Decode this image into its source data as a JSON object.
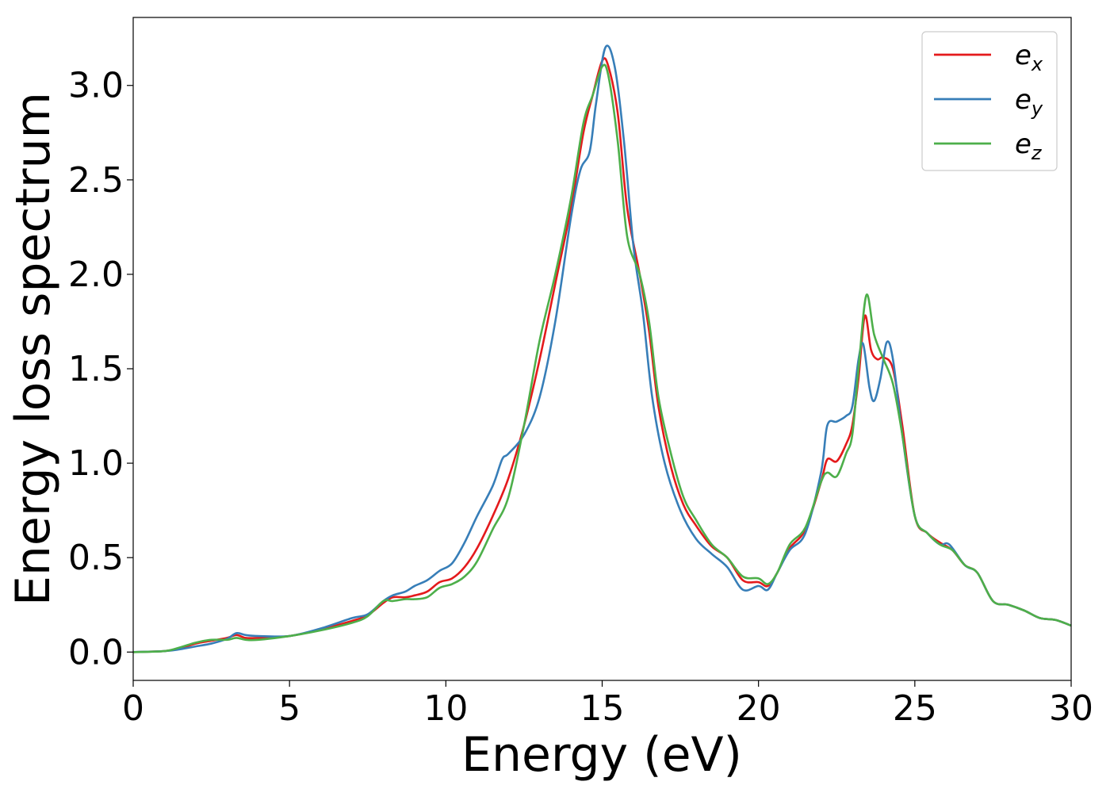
{
  "chart_data": {
    "type": "line",
    "title": "",
    "xlabel": "Energy (eV)",
    "ylabel": "Energy loss spectrum",
    "xlim": [
      0,
      30
    ],
    "ylim": [
      -0.15,
      3.36
    ],
    "xticks": [
      0,
      5,
      10,
      15,
      20,
      25,
      30
    ],
    "yticks": [
      0.0,
      0.5,
      1.0,
      1.5,
      2.0,
      2.5,
      3.0
    ],
    "xtick_labels": [
      "0",
      "5",
      "10",
      "15",
      "20",
      "25",
      "30"
    ],
    "ytick_labels": [
      "0.0",
      "0.5",
      "1.0",
      "1.5",
      "2.0",
      "2.5",
      "3.0"
    ],
    "grid": false,
    "legend_position": "top-right",
    "series": [
      {
        "name": "e_x",
        "legend_base": "e",
        "legend_sub": "x",
        "color": "#e41a1c",
        "points": [
          [
            0,
            0
          ],
          [
            1,
            0.005
          ],
          [
            1.5,
            0.02
          ],
          [
            2,
            0.045
          ],
          [
            2.5,
            0.06
          ],
          [
            3,
            0.075
          ],
          [
            3.3,
            0.09
          ],
          [
            3.6,
            0.075
          ],
          [
            4,
            0.075
          ],
          [
            5,
            0.085
          ],
          [
            6,
            0.12
          ],
          [
            7,
            0.165
          ],
          [
            7.5,
            0.195
          ],
          [
            8,
            0.26
          ],
          [
            8.3,
            0.29
          ],
          [
            8.7,
            0.29
          ],
          [
            9,
            0.3
          ],
          [
            9.4,
            0.32
          ],
          [
            9.8,
            0.37
          ],
          [
            10.2,
            0.39
          ],
          [
            10.6,
            0.45
          ],
          [
            11,
            0.55
          ],
          [
            11.5,
            0.72
          ],
          [
            12,
            0.92
          ],
          [
            12.5,
            1.2
          ],
          [
            13,
            1.55
          ],
          [
            13.5,
            1.95
          ],
          [
            14,
            2.35
          ],
          [
            14.4,
            2.75
          ],
          [
            14.7,
            2.95
          ],
          [
            15,
            3.13
          ],
          [
            15.2,
            3.1
          ],
          [
            15.5,
            2.85
          ],
          [
            15.8,
            2.35
          ],
          [
            16.2,
            2.0
          ],
          [
            16.5,
            1.7
          ],
          [
            16.8,
            1.3
          ],
          [
            17.2,
            0.98
          ],
          [
            17.6,
            0.78
          ],
          [
            18,
            0.67
          ],
          [
            18.5,
            0.56
          ],
          [
            19,
            0.5
          ],
          [
            19.5,
            0.38
          ],
          [
            20,
            0.37
          ],
          [
            20.3,
            0.35
          ],
          [
            20.6,
            0.42
          ],
          [
            21,
            0.55
          ],
          [
            21.5,
            0.65
          ],
          [
            22,
            0.9
          ],
          [
            22.2,
            1.02
          ],
          [
            22.5,
            1.01
          ],
          [
            22.8,
            1.1
          ],
          [
            23,
            1.2
          ],
          [
            23.2,
            1.45
          ],
          [
            23.4,
            1.78
          ],
          [
            23.6,
            1.6
          ],
          [
            23.8,
            1.55
          ],
          [
            24,
            1.56
          ],
          [
            24.3,
            1.5
          ],
          [
            24.6,
            1.2
          ],
          [
            25,
            0.72
          ],
          [
            25.4,
            0.63
          ],
          [
            25.8,
            0.58
          ],
          [
            26.2,
            0.54
          ],
          [
            26.6,
            0.46
          ],
          [
            27,
            0.42
          ],
          [
            27.5,
            0.27
          ],
          [
            28,
            0.25
          ],
          [
            28.5,
            0.22
          ],
          [
            29,
            0.18
          ],
          [
            29.5,
            0.17
          ],
          [
            30,
            0.14
          ]
        ]
      },
      {
        "name": "e_y",
        "legend_base": "e",
        "legend_sub": "y",
        "color": "#377eb8",
        "points": [
          [
            0,
            0
          ],
          [
            1,
            0.005
          ],
          [
            1.5,
            0.015
          ],
          [
            2,
            0.03
          ],
          [
            2.5,
            0.045
          ],
          [
            3,
            0.07
          ],
          [
            3.3,
            0.1
          ],
          [
            3.6,
            0.09
          ],
          [
            4,
            0.085
          ],
          [
            5,
            0.085
          ],
          [
            6,
            0.125
          ],
          [
            7,
            0.18
          ],
          [
            7.5,
            0.2
          ],
          [
            8,
            0.27
          ],
          [
            8.3,
            0.3
          ],
          [
            8.7,
            0.32
          ],
          [
            9,
            0.35
          ],
          [
            9.4,
            0.38
          ],
          [
            9.8,
            0.43
          ],
          [
            10.2,
            0.47
          ],
          [
            10.6,
            0.58
          ],
          [
            11,
            0.72
          ],
          [
            11.5,
            0.88
          ],
          [
            11.8,
            1.02
          ],
          [
            12,
            1.05
          ],
          [
            12.5,
            1.15
          ],
          [
            13,
            1.35
          ],
          [
            13.5,
            1.75
          ],
          [
            14,
            2.3
          ],
          [
            14.3,
            2.55
          ],
          [
            14.6,
            2.65
          ],
          [
            14.8,
            2.9
          ],
          [
            15.1,
            3.2
          ],
          [
            15.4,
            3.1
          ],
          [
            15.7,
            2.7
          ],
          [
            16,
            2.15
          ],
          [
            16.3,
            1.8
          ],
          [
            16.6,
            1.35
          ],
          [
            17,
            1.0
          ],
          [
            17.5,
            0.75
          ],
          [
            18,
            0.6
          ],
          [
            18.5,
            0.52
          ],
          [
            19,
            0.45
          ],
          [
            19.5,
            0.33
          ],
          [
            20,
            0.35
          ],
          [
            20.3,
            0.33
          ],
          [
            20.6,
            0.42
          ],
          [
            21,
            0.54
          ],
          [
            21.5,
            0.63
          ],
          [
            22,
            0.95
          ],
          [
            22.2,
            1.2
          ],
          [
            22.5,
            1.22
          ],
          [
            22.8,
            1.25
          ],
          [
            23,
            1.3
          ],
          [
            23.2,
            1.55
          ],
          [
            23.35,
            1.63
          ],
          [
            23.55,
            1.4
          ],
          [
            23.7,
            1.33
          ],
          [
            23.9,
            1.45
          ],
          [
            24.1,
            1.64
          ],
          [
            24.3,
            1.55
          ],
          [
            24.6,
            1.15
          ],
          [
            25,
            0.72
          ],
          [
            25.4,
            0.63
          ],
          [
            25.8,
            0.57
          ],
          [
            26.1,
            0.57
          ],
          [
            26.6,
            0.46
          ],
          [
            27,
            0.42
          ],
          [
            27.5,
            0.27
          ],
          [
            28,
            0.25
          ],
          [
            28.5,
            0.22
          ],
          [
            29,
            0.18
          ],
          [
            29.5,
            0.17
          ],
          [
            30,
            0.14
          ]
        ]
      },
      {
        "name": "e_z",
        "legend_base": "e",
        "legend_sub": "z",
        "color": "#4daf4a",
        "points": [
          [
            0,
            0
          ],
          [
            1,
            0.005
          ],
          [
            1.5,
            0.025
          ],
          [
            2,
            0.05
          ],
          [
            2.5,
            0.065
          ],
          [
            3,
            0.065
          ],
          [
            3.3,
            0.075
          ],
          [
            3.6,
            0.065
          ],
          [
            4,
            0.065
          ],
          [
            5,
            0.085
          ],
          [
            6,
            0.115
          ],
          [
            7,
            0.155
          ],
          [
            7.5,
            0.19
          ],
          [
            8,
            0.27
          ],
          [
            8.3,
            0.27
          ],
          [
            8.7,
            0.28
          ],
          [
            9,
            0.28
          ],
          [
            9.4,
            0.29
          ],
          [
            9.8,
            0.34
          ],
          [
            10.2,
            0.36
          ],
          [
            10.6,
            0.4
          ],
          [
            11,
            0.48
          ],
          [
            11.5,
            0.65
          ],
          [
            12,
            0.82
          ],
          [
            12.5,
            1.2
          ],
          [
            13,
            1.65
          ],
          [
            13.5,
            2.0
          ],
          [
            14,
            2.4
          ],
          [
            14.4,
            2.8
          ],
          [
            14.7,
            2.95
          ],
          [
            15,
            3.1
          ],
          [
            15.2,
            3.05
          ],
          [
            15.5,
            2.7
          ],
          [
            15.8,
            2.2
          ],
          [
            16.2,
            2.0
          ],
          [
            16.5,
            1.75
          ],
          [
            16.8,
            1.35
          ],
          [
            17.2,
            1.05
          ],
          [
            17.6,
            0.82
          ],
          [
            18,
            0.7
          ],
          [
            18.5,
            0.57
          ],
          [
            19,
            0.5
          ],
          [
            19.5,
            0.4
          ],
          [
            20,
            0.39
          ],
          [
            20.3,
            0.36
          ],
          [
            20.6,
            0.42
          ],
          [
            21,
            0.57
          ],
          [
            21.5,
            0.66
          ],
          [
            22,
            0.9
          ],
          [
            22.2,
            0.95
          ],
          [
            22.5,
            0.93
          ],
          [
            22.8,
            1.05
          ],
          [
            23,
            1.15
          ],
          [
            23.2,
            1.5
          ],
          [
            23.45,
            1.89
          ],
          [
            23.7,
            1.68
          ],
          [
            24,
            1.55
          ],
          [
            24.3,
            1.42
          ],
          [
            24.6,
            1.15
          ],
          [
            25,
            0.72
          ],
          [
            25.4,
            0.63
          ],
          [
            25.8,
            0.57
          ],
          [
            26.2,
            0.54
          ],
          [
            26.6,
            0.46
          ],
          [
            27,
            0.42
          ],
          [
            27.5,
            0.27
          ],
          [
            28,
            0.25
          ],
          [
            28.5,
            0.22
          ],
          [
            29,
            0.18
          ],
          [
            29.5,
            0.17
          ],
          [
            30,
            0.14
          ]
        ]
      }
    ]
  }
}
